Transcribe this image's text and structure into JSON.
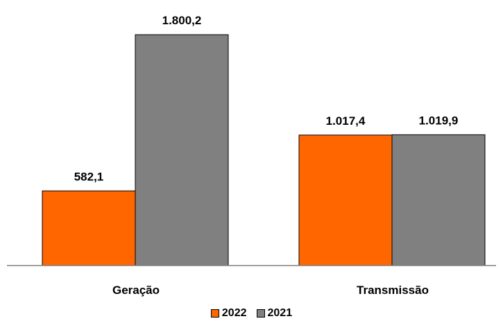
{
  "chart_data": {
    "type": "bar",
    "title": "",
    "xlabel": "",
    "ylabel": "",
    "categories": [
      "Geração",
      "Transmissão"
    ],
    "series": [
      {
        "name": "2022",
        "color": "#ff6600",
        "values": [
          582.1,
          1017.4
        ],
        "labels": [
          "582,1",
          "1.017,4"
        ]
      },
      {
        "name": "2021",
        "color": "#808080",
        "values": [
          1800.2,
          1019.9
        ],
        "labels": [
          "1.800,2",
          "1.019,9"
        ]
      }
    ],
    "ylim": [
      0,
      2000
    ],
    "grid": false,
    "legend_position": "bottom"
  }
}
